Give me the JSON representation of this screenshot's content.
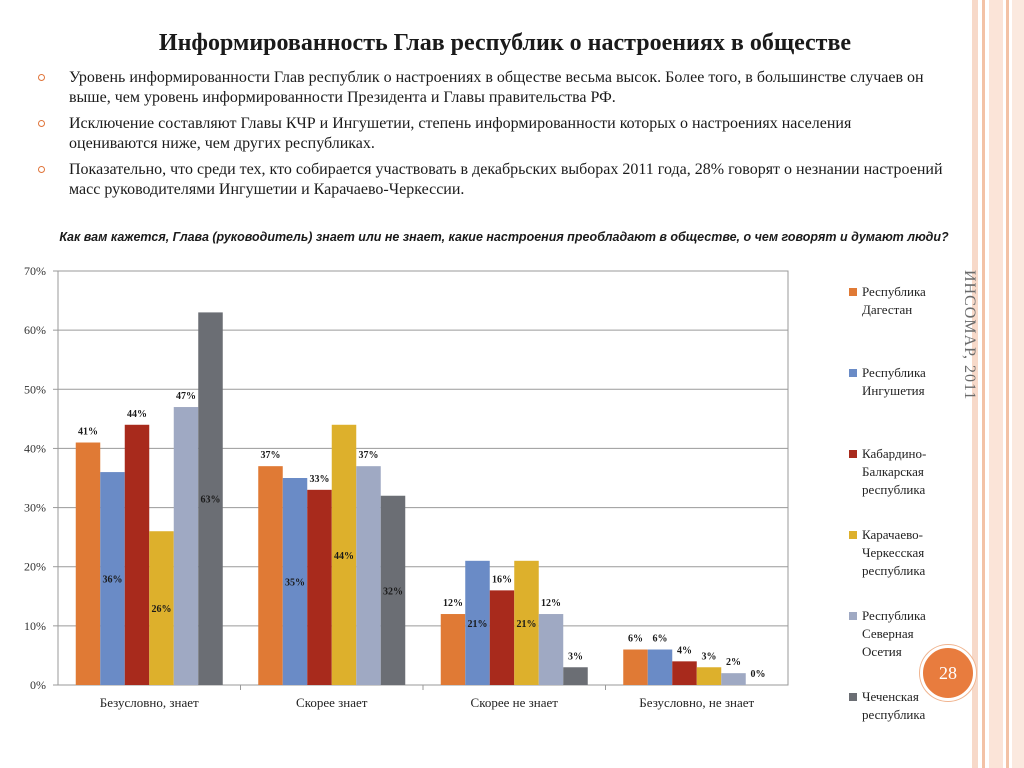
{
  "slide": {
    "title": "Информированность Глав республик о настроениях в обществе",
    "bullets": [
      "Уровень информированности Глав республик о настроениях в обществе весьма высок. Более того, в большинстве случаев он выше, чем уровень информированности Президента и Главы правительства РФ.",
      "Исключение составляют Главы КЧР и Ингушетии, степень информированности которых о настроениях населения оцениваются ниже, чем других республиках.",
      "Показательно, что среди тех, кто собирается участвовать в декабрьских выборах 2011 года, 28% говорят о незнании настроений масс руководителями Ингушетии и Карачаево-Черкессии."
    ],
    "watermark": "ИНСОМАР, 2011",
    "page_number": "28",
    "accent_color": "#e87c3e"
  },
  "chart_data": {
    "type": "bar",
    "title": "Как вам кажется, Глава (руководитель) знает или не знает, какие настроения преобладают в обществе, о чем говорят и думают люди?",
    "categories": [
      "Безусловно, знает",
      "Скорее знает",
      "Скорее не знает",
      "Безусловно, не знает"
    ],
    "ylim": [
      0,
      70
    ],
    "yticks": [
      "0%",
      "10%",
      "20%",
      "30%",
      "40%",
      "50%",
      "60%",
      "70%"
    ],
    "legend_position": "right",
    "series": [
      {
        "name": "Республика Дагестан",
        "color": "#e07a35",
        "values": [
          41,
          37,
          12,
          6
        ],
        "labels": [
          "41%",
          "37%",
          "12%",
          "6%"
        ]
      },
      {
        "name": "Республика Ингушетия",
        "color": "#6a8bc6",
        "values": [
          36,
          35,
          21,
          6
        ],
        "labels": [
          "36%",
          "35%",
          "21%",
          "6%"
        ]
      },
      {
        "name": "Кабардино-Балкарская республика",
        "color": "#a82a1c",
        "values": [
          44,
          33,
          16,
          4
        ],
        "labels": [
          "44%",
          "33%",
          "16%",
          "4%"
        ]
      },
      {
        "name": "Карачаево-Черкесская республика",
        "color": "#ddb02c",
        "values": [
          26,
          44,
          21,
          3
        ],
        "labels": [
          "26%",
          "44%",
          "21%",
          "3%"
        ]
      },
      {
        "name": "Республика Северная Осетия",
        "color": "#9fa9c3",
        "values": [
          47,
          37,
          12,
          2
        ],
        "labels": [
          "47%",
          "37%",
          "12%",
          "2%"
        ]
      },
      {
        "name": "Чеченская республика",
        "color": "#6b6e74",
        "values": [
          63,
          32,
          3,
          0
        ],
        "labels": [
          "63%",
          "32%",
          "3%",
          "0%"
        ]
      }
    ]
  }
}
